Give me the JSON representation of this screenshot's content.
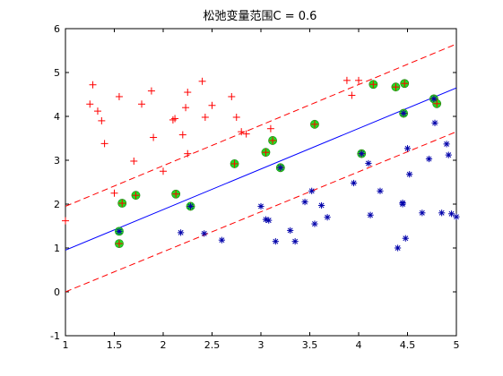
{
  "chart_data": {
    "type": "scatter",
    "title": "松弛变量范围C = 0.6",
    "xlabel": "",
    "ylabel": "",
    "xlim": [
      1,
      5
    ],
    "ylim": [
      -1,
      6
    ],
    "xticks": [
      "1",
      "1.5",
      "2",
      "2.5",
      "3",
      "3.5",
      "4",
      "4.5",
      "5"
    ],
    "yticks": [
      "-1",
      "0",
      "1",
      "2",
      "3",
      "4",
      "5",
      "6"
    ],
    "grid": false,
    "legend": "none",
    "colors": {
      "positive": "#ff0000",
      "negative": "#0000aa",
      "boundary": "#0000ff",
      "margin": "#ff0000",
      "support_vector": "#22dd22"
    },
    "lines": [
      {
        "role": "decision-boundary",
        "style": "solid",
        "x": [
          1,
          5
        ],
        "y": [
          0.95,
          4.65
        ]
      },
      {
        "role": "margin-upper",
        "style": "dashed",
        "x": [
          1,
          5
        ],
        "y": [
          1.95,
          5.65
        ]
      },
      {
        "role": "margin-lower",
        "style": "dashed",
        "x": [
          1,
          5
        ],
        "y": [
          0.0,
          3.65
        ]
      }
    ],
    "series": [
      {
        "marker": "plus",
        "class": "positive",
        "x": [
          1.0,
          1.25,
          1.28,
          1.33,
          1.37,
          1.4,
          1.5,
          1.55,
          1.7,
          1.78,
          1.88,
          1.9,
          2.0,
          2.1,
          2.12,
          2.2,
          2.23,
          2.25,
          2.25,
          2.4,
          2.43,
          2.5,
          2.7,
          2.75,
          2.8,
          2.85,
          3.1,
          3.88,
          3.93,
          4.0,
          1.58,
          1.72,
          2.13,
          2.73,
          3.05,
          3.12,
          3.55,
          4.15,
          4.38,
          4.47,
          4.8,
          1.55,
          2.28,
          3.2,
          4.03,
          4.46,
          4.77
        ],
        "y": [
          1.62,
          4.28,
          4.72,
          4.12,
          3.9,
          3.38,
          2.25,
          4.45,
          2.98,
          4.28,
          4.58,
          3.52,
          2.75,
          3.92,
          3.95,
          3.58,
          4.2,
          4.55,
          3.15,
          4.8,
          3.98,
          4.25,
          4.45,
          3.98,
          3.65,
          3.6,
          3.72,
          4.82,
          4.48,
          4.82,
          2.02,
          2.2,
          2.23,
          2.92,
          3.18,
          3.45,
          3.82,
          4.73,
          4.67,
          4.75,
          4.29,
          1.1,
          1.95,
          2.83,
          3.15,
          4.07,
          4.4
        ]
      },
      {
        "marker": "star",
        "class": "negative",
        "x": [
          2.18,
          2.42,
          2.6,
          3.0,
          3.05,
          3.08,
          3.15,
          3.3,
          3.35,
          3.45,
          3.52,
          3.55,
          3.62,
          3.68,
          3.95,
          4.1,
          4.12,
          4.22,
          4.4,
          4.45,
          4.45,
          4.48,
          4.5,
          4.52,
          4.65,
          4.72,
          4.78,
          4.85,
          4.9,
          4.92,
          4.95,
          5.0,
          1.55,
          2.28,
          3.2,
          4.03,
          4.46,
          4.77
        ],
        "y": [
          1.35,
          1.33,
          1.18,
          1.95,
          1.65,
          1.63,
          1.15,
          1.4,
          1.15,
          2.05,
          2.3,
          1.55,
          1.97,
          1.7,
          2.48,
          2.93,
          1.75,
          2.3,
          1.0,
          2.0,
          2.03,
          1.22,
          3.27,
          2.68,
          1.8,
          3.03,
          3.85,
          1.8,
          3.37,
          3.12,
          1.78,
          1.71,
          1.38,
          1.95,
          2.83,
          3.15,
          4.07,
          4.4
        ]
      }
    ],
    "support_vectors": {
      "marker": "circle",
      "x": [
        1.55,
        1.58,
        1.72,
        2.13,
        2.28,
        2.73,
        3.05,
        3.12,
        3.2,
        3.55,
        4.03,
        4.15,
        4.38,
        4.46,
        4.47,
        4.77,
        4.8,
        1.55
      ],
      "y": [
        1.1,
        2.02,
        2.2,
        2.23,
        1.95,
        2.92,
        3.18,
        3.45,
        2.83,
        3.82,
        3.15,
        4.73,
        4.67,
        4.07,
        4.75,
        4.4,
        4.29,
        1.38
      ]
    }
  }
}
